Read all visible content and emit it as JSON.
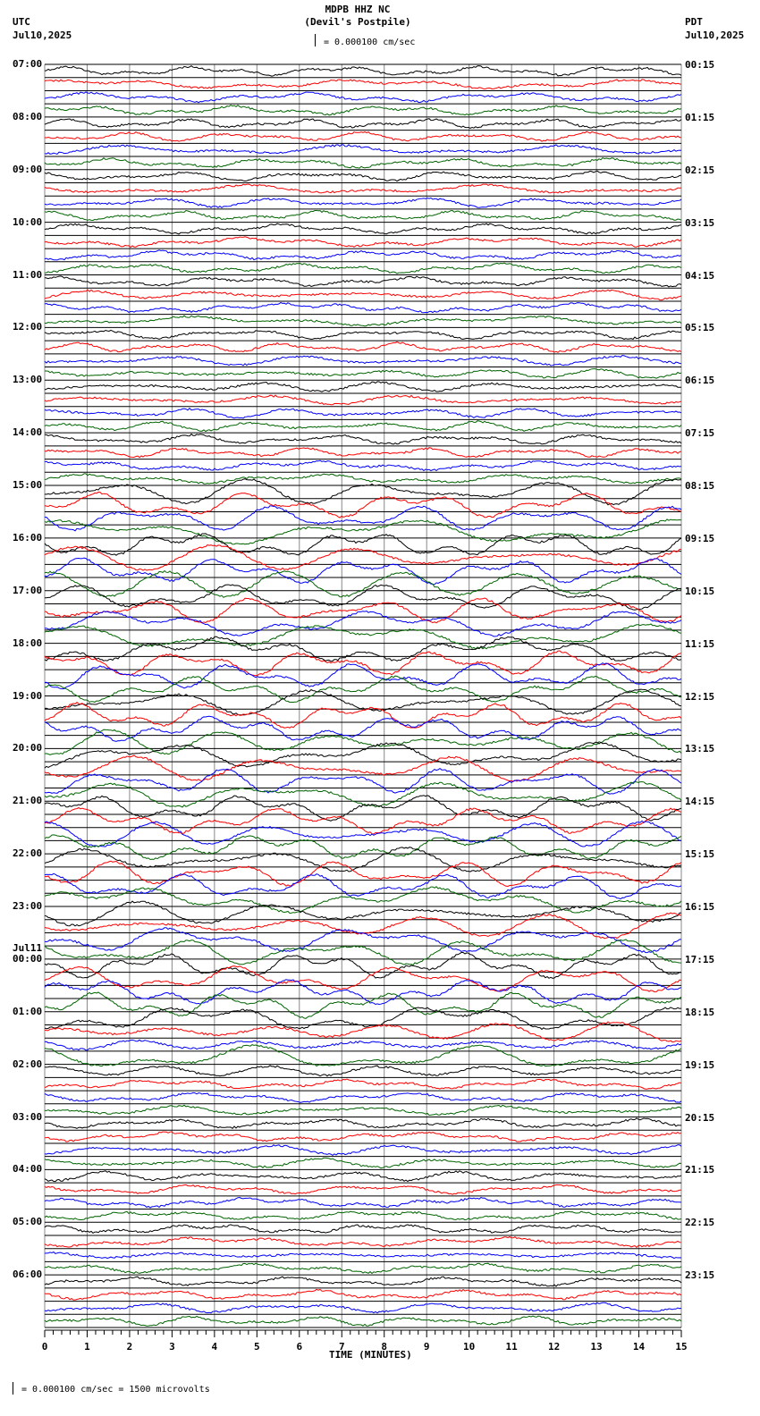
{
  "header": {
    "station": "MDPB HHZ NC",
    "location": "(Devil's Postpile)",
    "scale": "= 0.000100 cm/sec",
    "left_tz": "UTC",
    "left_date": "Jul10,2025",
    "right_tz": "PDT",
    "right_date": "Jul10,2025"
  },
  "footer": {
    "calibration": "= 0.000100 cm/sec =    1500 microvolts"
  },
  "chart_data": {
    "type": "line",
    "title": "MDPB HHZ NC (Devil's Postpile)",
    "xlabel": "TIME (MINUTES)",
    "ylabel": "",
    "x_ticks": [
      "0",
      "1",
      "2",
      "3",
      "4",
      "5",
      "6",
      "7",
      "8",
      "9",
      "10",
      "11",
      "12",
      "13",
      "14",
      "15"
    ],
    "xlim": [
      0,
      15
    ],
    "grid": true,
    "trace_colors": [
      "#000000",
      "#ff0000",
      "#0000ff",
      "#006400"
    ],
    "left_labels": [
      "07:00",
      "08:00",
      "09:00",
      "10:00",
      "11:00",
      "12:00",
      "13:00",
      "14:00",
      "15:00",
      "16:00",
      "17:00",
      "18:00",
      "19:00",
      "20:00",
      "21:00",
      "22:00",
      "23:00",
      "Jul11\n00:00",
      "01:00",
      "02:00",
      "03:00",
      "04:00",
      "05:00",
      "06:00"
    ],
    "right_labels": [
      "00:15",
      "01:15",
      "02:15",
      "03:15",
      "04:15",
      "05:15",
      "06:15",
      "07:15",
      "08:15",
      "09:15",
      "10:15",
      "11:15",
      "12:15",
      "13:15",
      "14:15",
      "15:15",
      "16:15",
      "17:15",
      "18:15",
      "19:15",
      "20:15",
      "21:15",
      "22:15",
      "23:15"
    ],
    "traces_per_hour": 4,
    "minutes_per_trace": 15,
    "scale": "0.000100 cm/sec = 1500 microvolts"
  }
}
